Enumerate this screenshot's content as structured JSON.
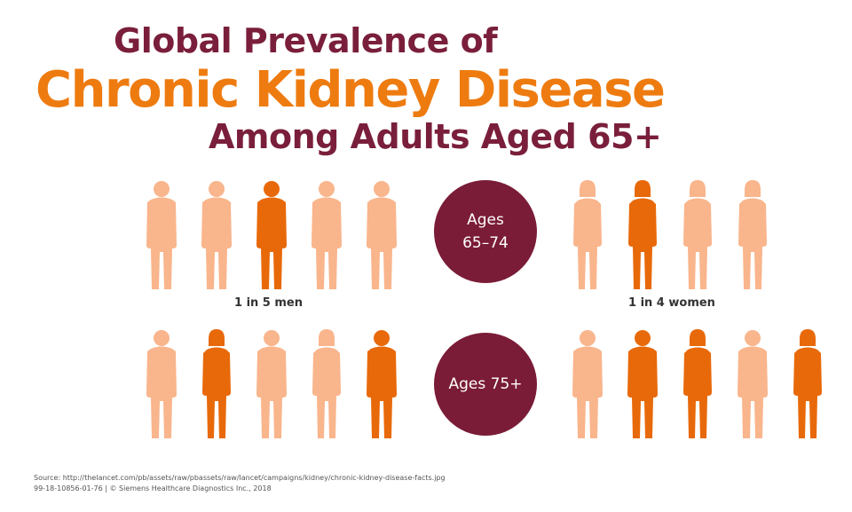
{
  "title": {
    "line1": "Global Prevalence of",
    "line2": "Chronic Kidney Disease",
    "line3": "Among Adults Aged 65+"
  },
  "colors": {
    "maroon": "#7a1c37",
    "orange": "#e8690a",
    "peach": "#f9b58c"
  },
  "groups": [
    {
      "age_label": "Ages 65–74",
      "age_line1": "Ages",
      "age_line2": "65–74",
      "men": {
        "label": "1 in 5 men",
        "affected": [
          false,
          false,
          true,
          false,
          false
        ]
      },
      "women": {
        "label": "1 in 4 women",
        "affected": [
          false,
          true,
          false,
          false
        ]
      }
    },
    {
      "age_label": "Ages 75+",
      "men": {
        "affected": [
          false,
          true,
          false,
          false,
          true
        ]
      },
      "women": {
        "affected": [
          false,
          true,
          true,
          false,
          true
        ]
      }
    }
  ],
  "footer": {
    "source": "Source: http://thelancet.com/pb/assets/raw/pbassets/raw/lancet/campaigns/kidney/chronic-kidney-disease-facts.jpg",
    "id_line": "99-18-10856-01-76  |  © Siemens Healthcare Diagnostics Inc., 2018"
  }
}
